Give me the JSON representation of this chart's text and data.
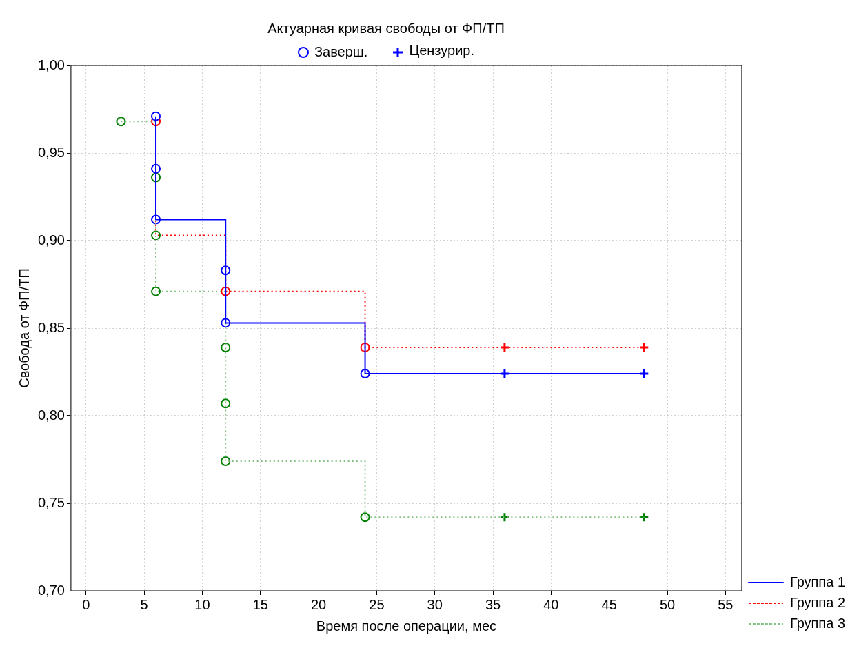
{
  "chart_data": {
    "type": "step",
    "title": "Актуарная кривая свободы от ФП/ТП",
    "xlabel": "Время после операции, мес",
    "ylabel": "Свобода от ФП/ТП",
    "xlim": [
      -1.3,
      56.4
    ],
    "xticks": [
      0,
      5,
      10,
      15,
      20,
      25,
      30,
      35,
      40,
      45,
      50,
      55
    ],
    "ylim": [
      0.7,
      1.0
    ],
    "yticks": [
      {
        "value": 0.7,
        "label": "0,70"
      },
      {
        "value": 0.75,
        "label": "0,75"
      },
      {
        "value": 0.8,
        "label": "0,80"
      },
      {
        "value": 0.85,
        "label": "0,85"
      },
      {
        "value": 0.9,
        "label": "0,90"
      },
      {
        "value": 0.95,
        "label": "0,95"
      },
      {
        "value": 1.0,
        "label": "1,00"
      }
    ],
    "grid": true,
    "legend": "bottom right",
    "series": [
      {
        "name": "Группа 1",
        "color": "#0000ff",
        "line_style": "solid",
        "marker": "none",
        "x": [
          6,
          6,
          12,
          24,
          48
        ],
        "values": [
          0.971,
          0.912,
          0.853,
          0.824,
          0.824
        ]
      },
      {
        "name": "Группа 2",
        "color": "#ff0000",
        "line_style": "dotted",
        "marker": "none",
        "x": [
          6,
          6,
          12,
          24,
          48
        ],
        "values": [
          0.968,
          0.903,
          0.871,
          0.839,
          0.839
        ]
      },
      {
        "name": "Группа 3",
        "color": "#80c080",
        "line_style": "dotted",
        "marker": "none",
        "x": [
          3,
          6,
          12,
          24,
          48
        ],
        "values": [
          0.968,
          0.871,
          0.774,
          0.742,
          0.742
        ]
      },
      {
        "type": "scatter",
        "name": "Заверш.",
        "color": "#0000ff",
        "marker": "circle",
        "x": [
          6,
          6,
          6,
          12,
          12,
          24
        ],
        "values": [
          0.971,
          0.941,
          0.912,
          0.883,
          0.853,
          0.824
        ]
      },
      {
        "type": "scatter",
        "name": "Цензурир.",
        "color": "#0000ff",
        "marker": "cross",
        "x": [
          36,
          48
        ],
        "values": [
          0.824,
          0.824
        ]
      },
      {
        "type": "scatter",
        "color": "#ff0000",
        "marker": "circle",
        "x": [
          6,
          12,
          24
        ],
        "values": [
          0.968,
          0.871,
          0.839
        ]
      },
      {
        "type": "scatter",
        "color": "#ff0000",
        "marker": "cross",
        "x": [
          36,
          48
        ],
        "values": [
          0.839,
          0.839
        ]
      },
      {
        "type": "scatter",
        "color": "#008000",
        "marker": "circle",
        "x": [
          3,
          6,
          6,
          6,
          12,
          12,
          12,
          24
        ],
        "values": [
          0.968,
          0.936,
          0.903,
          0.871,
          0.839,
          0.807,
          0.774,
          0.742
        ]
      },
      {
        "type": "scatter",
        "color": "#008000",
        "marker": "cross",
        "x": [
          36,
          48
        ],
        "values": [
          0.742,
          0.742
        ]
      }
    ]
  }
}
